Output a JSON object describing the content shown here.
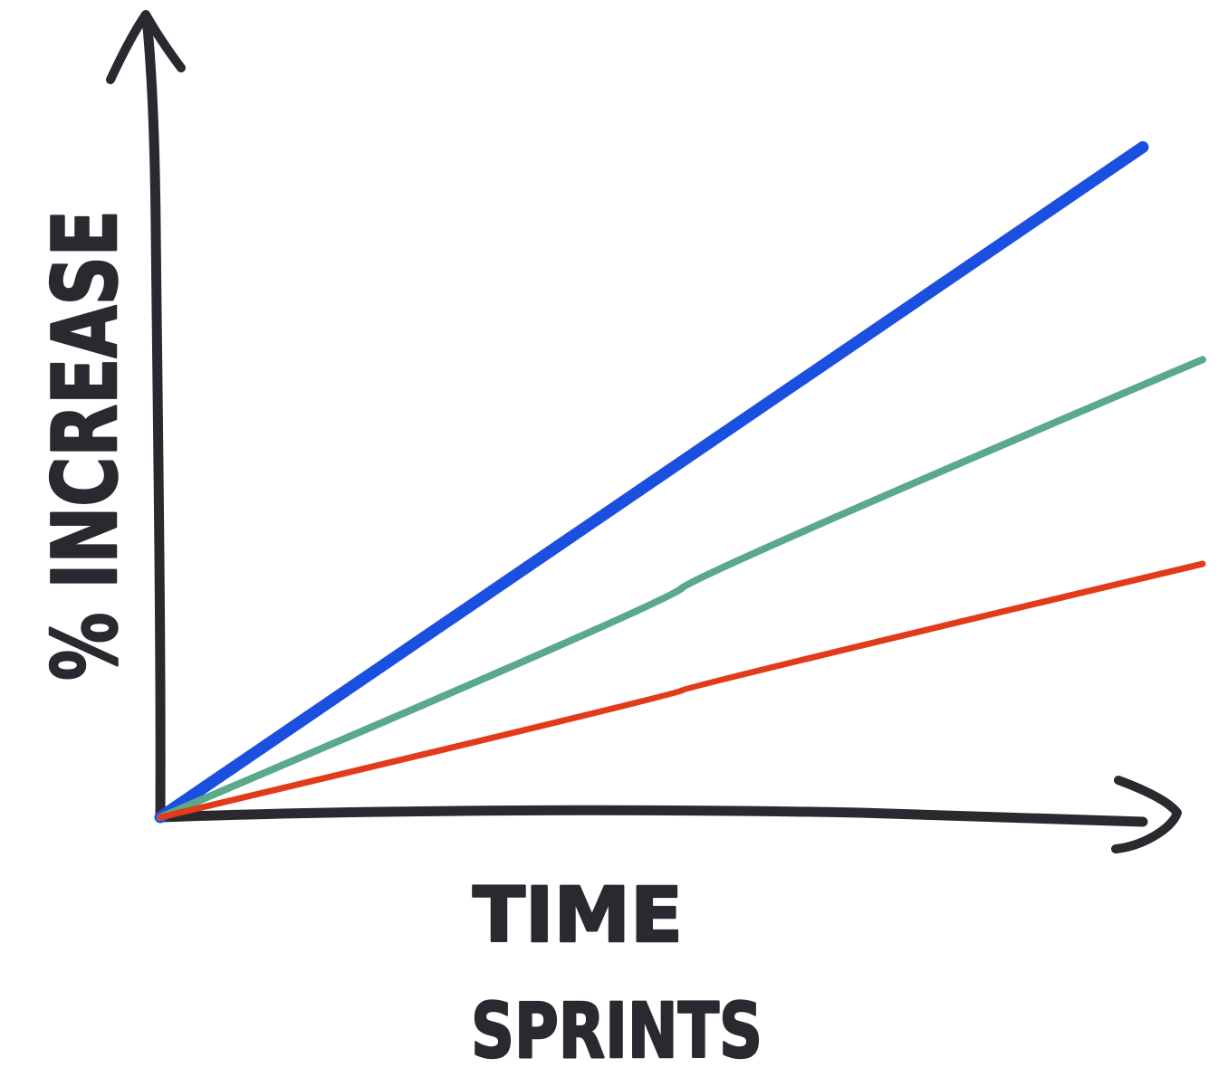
{
  "chart_data": {
    "type": "line",
    "title": "",
    "xlabel": "TIME",
    "x_sublabel": "SPRINTS",
    "ylabel": "% INCREASE",
    "grid": false,
    "legend": "none",
    "x": [
      0,
      1
    ],
    "series": [
      {
        "color": "#1b4fe0",
        "values": [
          0,
          0.82
        ]
      },
      {
        "color": "#5aa98a",
        "values": [
          0,
          0.56
        ]
      },
      {
        "color": "#e23b1a",
        "values": [
          0,
          0.31
        ]
      }
    ]
  }
}
